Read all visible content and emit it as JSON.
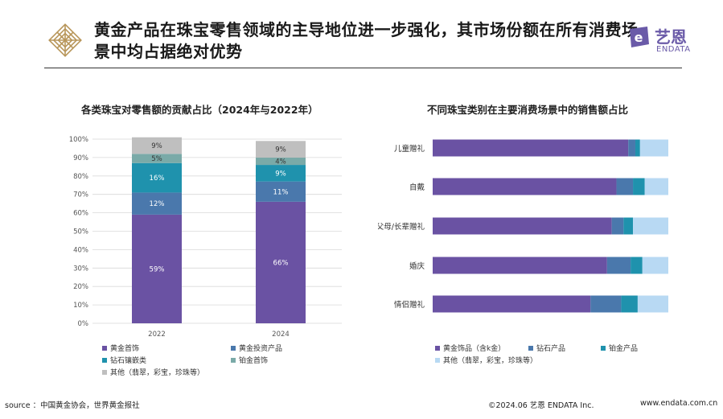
{
  "header": {
    "title": "黄金产品在珠宝零售领域的主导地位进一步强化，其市场份额在所有消费场景中均占据绝对优势",
    "brand_cn": "艺恩",
    "brand_en": "ENDATA"
  },
  "left_chart_title": "各类珠宝对零售额的贡献占比（2024年与2022年）",
  "right_chart_title": "不同珠宝类别在主要消费场景中的销售额占比",
  "colors": {
    "gold_jewelry": "#6a52a3",
    "gold_invest": "#4a78ac",
    "diamond": "#1f92ad",
    "platinum": "#7aaaa8",
    "other": "#bfbfbf",
    "other_light": "#b8d9f3"
  },
  "chart_data": [
    {
      "type": "bar",
      "stacked": true,
      "title": "各类珠宝对零售额的贡献占比（2024年与2022年）",
      "categories": [
        "2022",
        "2024"
      ],
      "ylim": [
        0,
        100
      ],
      "yticks": [
        "0%",
        "10%",
        "20%",
        "30%",
        "40%",
        "50%",
        "60%",
        "70%",
        "80%",
        "90%",
        "100%"
      ],
      "series": [
        {
          "name": "黄金首饰",
          "values": [
            59,
            66
          ],
          "labels": [
            "59%",
            "66%"
          ],
          "color": "#6a52a3"
        },
        {
          "name": "黄金投资产品",
          "values": [
            12,
            11
          ],
          "labels": [
            "12%",
            "11%"
          ],
          "color": "#4a78ac"
        },
        {
          "name": "钻石镶嵌类",
          "values": [
            16,
            9
          ],
          "labels": [
            "16%",
            "9%"
          ],
          "color": "#1f92ad"
        },
        {
          "name": "铂金首饰",
          "values": [
            5,
            4
          ],
          "labels": [
            "5%",
            "4%"
          ],
          "color": "#7aaaa8"
        },
        {
          "name": "其他（翡翠，彩宝，珍珠等）",
          "values": [
            9,
            9
          ],
          "labels": [
            "9%",
            "9%"
          ],
          "color": "#bfbfbf"
        }
      ]
    },
    {
      "type": "bar",
      "orientation": "horizontal",
      "stacked": true,
      "title": "不同珠宝类别在主要消费场景中的销售额占比",
      "categories": [
        "儿童赠礼",
        "自戴",
        "父母/长辈赠礼",
        "婚庆",
        "情侣赠礼"
      ],
      "xlim": [
        0,
        100
      ],
      "series": [
        {
          "name": "黄金饰品（含k金）",
          "values": [
            83,
            78,
            76,
            74,
            67
          ],
          "color": "#6a52a3"
        },
        {
          "name": "钻石产品",
          "values": [
            3,
            7,
            5,
            10,
            13
          ],
          "color": "#4a78ac"
        },
        {
          "name": "铂金产品",
          "values": [
            2,
            5,
            4,
            5,
            7
          ],
          "color": "#1f92ad"
        },
        {
          "name": "其他（翡翠，彩宝，珍珠等）",
          "values": [
            12,
            10,
            15,
            11,
            13
          ],
          "color": "#b8d9f3"
        }
      ]
    }
  ],
  "footer": {
    "source": "source ：中国黄金协会，世界黄金报社",
    "copyright": "©2024.06  艺恩 ENDATA Inc.",
    "website": "www.endata.com.cn"
  }
}
